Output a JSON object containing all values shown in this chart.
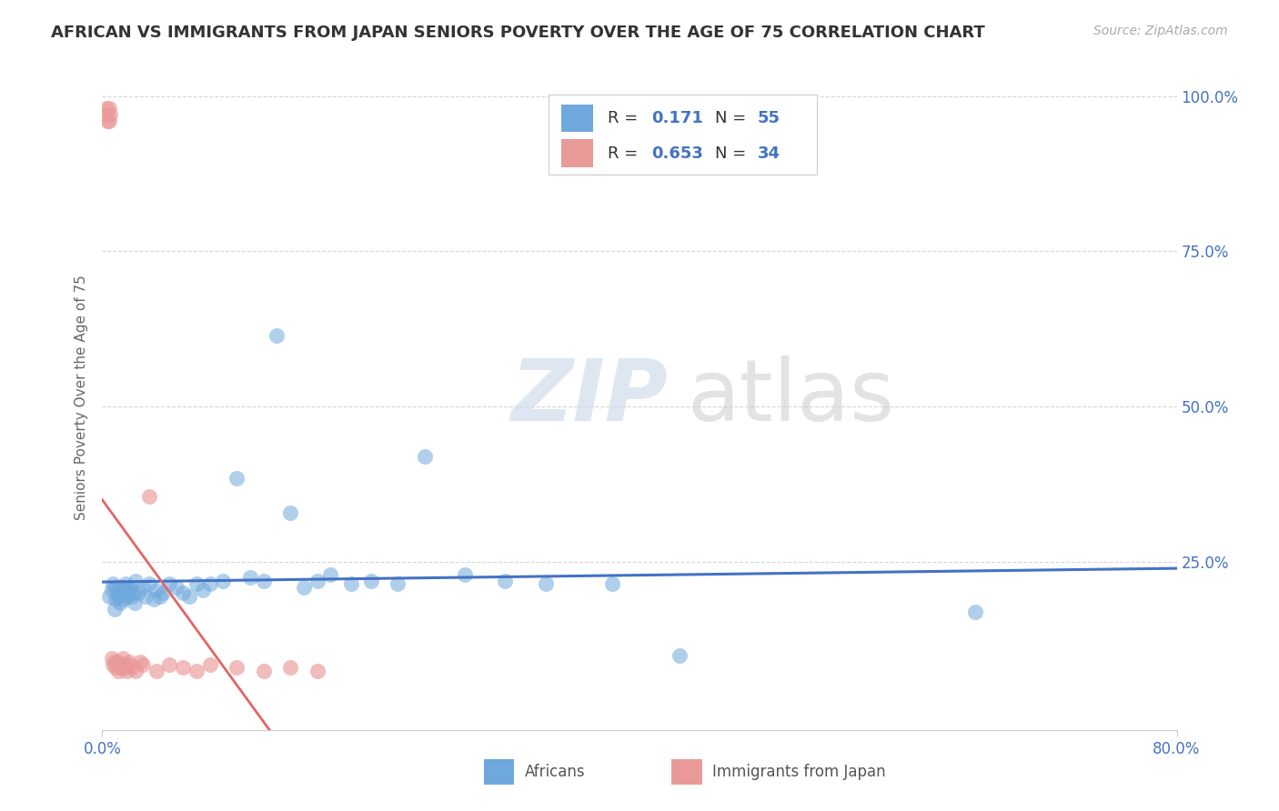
{
  "title": "AFRICAN VS IMMIGRANTS FROM JAPAN SENIORS POVERTY OVER THE AGE OF 75 CORRELATION CHART",
  "source": "Source: ZipAtlas.com",
  "ylabel": "Seniors Poverty Over the Age of 75",
  "legend_africans": "Africans",
  "legend_japan": "Immigrants from Japan",
  "africans_R": 0.171,
  "africans_N": 55,
  "japan_R": 0.653,
  "japan_N": 34,
  "xlim": [
    0.0,
    0.8
  ],
  "ylim": [
    -0.02,
    1.05
  ],
  "yticks": [
    0.25,
    0.5,
    0.75,
    1.0
  ],
  "ytick_labels": [
    "25.0%",
    "50.0%",
    "75.0%",
    "100.0%"
  ],
  "xtick_labels": [
    "0.0%",
    "80.0%"
  ],
  "blue_color": "#6fa8dc",
  "pink_color": "#ea9999",
  "blue_line_color": "#4472c4",
  "pink_line_color": "#e06666",
  "text_blue": "#4472c4",
  "grid_color": "#cccccc",
  "watermark_zip": "ZIP",
  "watermark_atlas": "atlas",
  "background_color": "#ffffff",
  "title_fontsize": 13,
  "axis_label_fontsize": 11,
  "tick_fontsize": 12,
  "africans_x": [
    0.005,
    0.007,
    0.008,
    0.009,
    0.01,
    0.01,
    0.011,
    0.012,
    0.013,
    0.014,
    0.015,
    0.016,
    0.017,
    0.018,
    0.019,
    0.02,
    0.021,
    0.022,
    0.023,
    0.024,
    0.025,
    0.027,
    0.03,
    0.032,
    0.035,
    0.038,
    0.04,
    0.043,
    0.045,
    0.05,
    0.055,
    0.06,
    0.065,
    0.07,
    0.075,
    0.08,
    0.09,
    0.1,
    0.11,
    0.12,
    0.13,
    0.14,
    0.15,
    0.16,
    0.17,
    0.185,
    0.2,
    0.22,
    0.24,
    0.27,
    0.3,
    0.33,
    0.38,
    0.43,
    0.65
  ],
  "africans_y": [
    0.195,
    0.205,
    0.215,
    0.175,
    0.19,
    0.21,
    0.2,
    0.195,
    0.185,
    0.21,
    0.205,
    0.19,
    0.215,
    0.195,
    0.2,
    0.205,
    0.21,
    0.195,
    0.2,
    0.185,
    0.22,
    0.2,
    0.21,
    0.195,
    0.215,
    0.19,
    0.205,
    0.195,
    0.2,
    0.215,
    0.21,
    0.2,
    0.195,
    0.215,
    0.205,
    0.215,
    0.22,
    0.385,
    0.225,
    0.22,
    0.615,
    0.33,
    0.21,
    0.22,
    0.23,
    0.215,
    0.22,
    0.215,
    0.42,
    0.23,
    0.22,
    0.215,
    0.215,
    0.1,
    0.17
  ],
  "japan_x": [
    0.003,
    0.004,
    0.004,
    0.005,
    0.005,
    0.006,
    0.007,
    0.008,
    0.009,
    0.01,
    0.011,
    0.012,
    0.013,
    0.014,
    0.015,
    0.016,
    0.017,
    0.018,
    0.019,
    0.02,
    0.022,
    0.025,
    0.028,
    0.03,
    0.035,
    0.04,
    0.05,
    0.06,
    0.07,
    0.08,
    0.1,
    0.12,
    0.14,
    0.16
  ],
  "japan_y": [
    0.98,
    0.96,
    0.97,
    0.98,
    0.96,
    0.97,
    0.095,
    0.085,
    0.09,
    0.08,
    0.09,
    0.075,
    0.085,
    0.08,
    0.095,
    0.085,
    0.08,
    0.075,
    0.085,
    0.09,
    0.08,
    0.075,
    0.09,
    0.085,
    0.355,
    0.075,
    0.085,
    0.08,
    0.075,
    0.085,
    0.08,
    0.075,
    0.08,
    0.075
  ]
}
